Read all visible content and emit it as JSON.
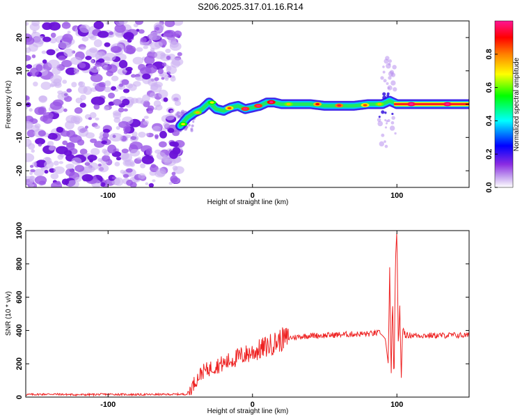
{
  "chart_data": [
    {
      "type": "heatmap",
      "title": "S206.2025.317.01.16.R14",
      "xlabel": "Height of straight line (km)",
      "ylabel": "Frequency (Hz)",
      "xlim": [
        -157,
        150
      ],
      "ylim": [
        -25,
        25
      ],
      "xticks": [
        -100,
        0,
        100
      ],
      "yticks": [
        -20,
        -10,
        0,
        10,
        20
      ],
      "colorbar": {
        "label": "Normalized spectral amplitude",
        "range": [
          0,
          1
        ],
        "ticks": [
          0.0,
          0.2,
          0.4,
          0.6,
          0.8
        ],
        "colormap": [
          "#ffffff",
          "#8a2be2",
          "#0000ff",
          "#00ffff",
          "#00ff00",
          "#ffff00",
          "#ff8000",
          "#ff0000",
          "#ff1493"
        ]
      },
      "noise_region_x": [
        -157,
        -50
      ],
      "ridge": {
        "x": [
          -50,
          -45,
          -40,
          -35,
          -30,
          -25,
          -20,
          -15,
          -10,
          -5,
          0,
          5,
          10,
          15,
          20,
          30,
          40,
          50,
          60,
          70,
          80,
          85,
          90,
          95,
          100,
          150
        ],
        "frequency": [
          -6.5,
          -4,
          -2.5,
          -1.5,
          0.5,
          -1.5,
          -2,
          -1,
          -0.5,
          -1.5,
          -1,
          -0.5,
          0.5,
          0.5,
          0,
          0,
          0,
          -0.5,
          -0.5,
          -0.5,
          0,
          0,
          0,
          1,
          0,
          0
        ]
      },
      "peak_values": [
        {
          "x": -48,
          "y": -6,
          "v": 0.55
        },
        {
          "x": -38,
          "y": -2.5,
          "v": 0.6
        },
        {
          "x": -28,
          "y": 0.5,
          "v": 0.55
        },
        {
          "x": -16,
          "y": -1.2,
          "v": 0.7
        },
        {
          "x": -5,
          "y": -1.4,
          "v": 0.85
        },
        {
          "x": 4,
          "y": -0.5,
          "v": 0.85
        },
        {
          "x": 13,
          "y": 0.6,
          "v": 0.9
        },
        {
          "x": 25,
          "y": 0,
          "v": 0.6
        },
        {
          "x": 45,
          "y": 0,
          "v": 0.75
        },
        {
          "x": 60,
          "y": -0.4,
          "v": 0.8
        },
        {
          "x": 78,
          "y": -0.3,
          "v": 0.7
        },
        {
          "x": 88,
          "y": 0,
          "v": 0.6
        },
        {
          "x": 110,
          "y": 0,
          "v": 0.95
        },
        {
          "x": 135,
          "y": 0,
          "v": 0.95
        }
      ]
    },
    {
      "type": "line",
      "title": "",
      "xlabel": "Height of straight line (km)",
      "ylabel": "SNR (10 * v/v)",
      "xlim": [
        -157,
        150
      ],
      "ylim": [
        0,
        1000
      ],
      "xticks": [
        -100,
        0,
        100
      ],
      "yticks": [
        0,
        200,
        400,
        600,
        800,
        1000
      ],
      "color": "#ee2222",
      "series": [
        {
          "name": "SNR",
          "x": [
            -157,
            -140,
            -120,
            -100,
            -80,
            -60,
            -45,
            -40,
            -35,
            -30,
            -25,
            -20,
            -15,
            -10,
            -5,
            0,
            5,
            10,
            15,
            20,
            25,
            30,
            40,
            50,
            60,
            70,
            80,
            88,
            90,
            92,
            94,
            95,
            96,
            97,
            98,
            99,
            100,
            101,
            102,
            103,
            104,
            106,
            110,
            120,
            130,
            140,
            150
          ],
          "values": [
            15,
            18,
            14,
            17,
            15,
            16,
            18,
            90,
            150,
            170,
            190,
            200,
            220,
            240,
            255,
            270,
            285,
            305,
            325,
            345,
            355,
            360,
            370,
            370,
            375,
            378,
            380,
            385,
            370,
            350,
            200,
            780,
            120,
            600,
            60,
            830,
            1000,
            300,
            550,
            100,
            420,
            370,
            372,
            370,
            370,
            372,
            370
          ]
        }
      ]
    }
  ]
}
